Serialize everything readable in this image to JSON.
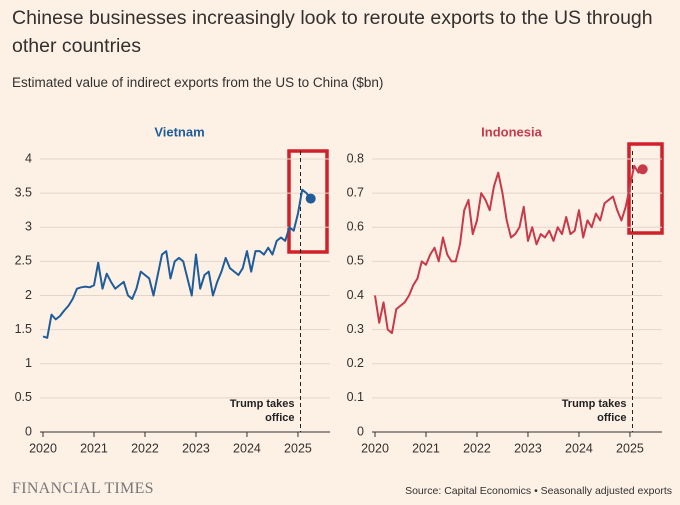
{
  "title": "Chinese businesses increasingly look to reroute exports to the US through other countries",
  "subtitle": "Estimated value of indirect exports from the US to China ($bn)",
  "brand": "FINANCIAL TIMES",
  "source": "Source: Capital Economics • Seasonally adjusted exports",
  "chart_data": [
    {
      "type": "line",
      "title": "Vietnam",
      "color": "#1f5c99",
      "x": [
        2020,
        2020.083,
        2020.167,
        2020.25,
        2020.333,
        2020.417,
        2020.5,
        2020.583,
        2020.667,
        2020.75,
        2020.833,
        2020.917,
        2021,
        2021.083,
        2021.167,
        2021.25,
        2021.333,
        2021.417,
        2021.5,
        2021.583,
        2021.667,
        2021.75,
        2021.833,
        2021.917,
        2022,
        2022.083,
        2022.167,
        2022.25,
        2022.333,
        2022.417,
        2022.5,
        2022.583,
        2022.667,
        2022.75,
        2022.833,
        2022.917,
        2023,
        2023.083,
        2023.167,
        2023.25,
        2023.333,
        2023.417,
        2023.5,
        2023.583,
        2023.667,
        2023.75,
        2023.833,
        2023.917,
        2024,
        2024.083,
        2024.167,
        2024.25,
        2024.333,
        2024.417,
        2024.5,
        2024.583,
        2024.667,
        2024.75,
        2024.833,
        2024.917,
        2025,
        2025.083,
        2025.167,
        2025.25
      ],
      "values": [
        1.4,
        1.38,
        1.72,
        1.65,
        1.7,
        1.78,
        1.85,
        1.95,
        2.1,
        2.12,
        2.13,
        2.12,
        2.15,
        2.48,
        2.1,
        2.32,
        2.2,
        2.1,
        2.15,
        2.2,
        2.0,
        1.95,
        2.1,
        2.35,
        2.3,
        2.25,
        2.0,
        2.3,
        2.6,
        2.65,
        2.25,
        2.5,
        2.55,
        2.5,
        2.25,
        2.0,
        2.6,
        2.1,
        2.3,
        2.35,
        2.0,
        2.2,
        2.35,
        2.55,
        2.4,
        2.35,
        2.3,
        2.4,
        2.65,
        2.35,
        2.65,
        2.65,
        2.6,
        2.7,
        2.6,
        2.8,
        2.85,
        2.8,
        3.0,
        2.95,
        3.2,
        3.55,
        3.5,
        3.42
      ],
      "xlim": [
        2020,
        2025.55
      ],
      "xticks": [
        2020,
        2021,
        2022,
        2023,
        2024,
        2025
      ],
      "ylim": [
        0,
        4
      ],
      "yticks": [
        0,
        0.5,
        1,
        1.5,
        2,
        2.5,
        3,
        3.5,
        4
      ],
      "grid": true,
      "annotation": {
        "text": "Trump takes office",
        "x": 2025.05
      }
    },
    {
      "type": "line",
      "title": "Indonesia",
      "color": "#c8394a",
      "x": [
        2020,
        2020.083,
        2020.167,
        2020.25,
        2020.333,
        2020.417,
        2020.5,
        2020.583,
        2020.667,
        2020.75,
        2020.833,
        2020.917,
        2021,
        2021.083,
        2021.167,
        2021.25,
        2021.333,
        2021.417,
        2021.5,
        2021.583,
        2021.667,
        2021.75,
        2021.833,
        2021.917,
        2022,
        2022.083,
        2022.167,
        2022.25,
        2022.333,
        2022.417,
        2022.5,
        2022.583,
        2022.667,
        2022.75,
        2022.833,
        2022.917,
        2023,
        2023.083,
        2023.167,
        2023.25,
        2023.333,
        2023.417,
        2023.5,
        2023.583,
        2023.667,
        2023.75,
        2023.833,
        2023.917,
        2024,
        2024.083,
        2024.167,
        2024.25,
        2024.333,
        2024.417,
        2024.5,
        2024.583,
        2024.667,
        2024.75,
        2024.833,
        2024.917,
        2025,
        2025.083,
        2025.167,
        2025.25
      ],
      "values": [
        0.4,
        0.32,
        0.38,
        0.3,
        0.29,
        0.36,
        0.37,
        0.38,
        0.4,
        0.43,
        0.45,
        0.5,
        0.49,
        0.52,
        0.54,
        0.5,
        0.57,
        0.52,
        0.5,
        0.5,
        0.55,
        0.65,
        0.68,
        0.58,
        0.62,
        0.7,
        0.68,
        0.65,
        0.72,
        0.76,
        0.7,
        0.62,
        0.57,
        0.58,
        0.6,
        0.66,
        0.56,
        0.6,
        0.55,
        0.58,
        0.57,
        0.59,
        0.56,
        0.6,
        0.58,
        0.63,
        0.58,
        0.59,
        0.65,
        0.57,
        0.62,
        0.6,
        0.64,
        0.62,
        0.67,
        0.68,
        0.69,
        0.65,
        0.62,
        0.66,
        0.72,
        0.78,
        0.76,
        0.77
      ],
      "xlim": [
        2020,
        2025.55
      ],
      "xticks": [
        2020,
        2021,
        2022,
        2023,
        2024,
        2025
      ],
      "ylim": [
        0,
        0.8
      ],
      "yticks": [
        0,
        0.1,
        0.2,
        0.3,
        0.4,
        0.5,
        0.6,
        0.7,
        0.8
      ],
      "grid": true,
      "annotation": {
        "text": "Trump takes office",
        "x": 2025.05
      }
    }
  ]
}
